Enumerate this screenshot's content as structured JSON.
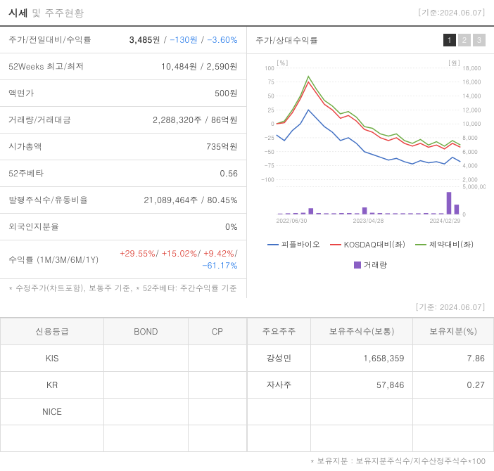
{
  "header": {
    "title_prefix": "시세",
    "title_suffix": "및 주주현황",
    "date": "[기준:2024.06.07]"
  },
  "info_rows": {
    "price_label": "주가/전일대비/수익률",
    "price_value": "3,485",
    "price_unit": "원",
    "price_change": "-130원",
    "price_pct": "-3.60%",
    "weeks_label": "52Weeks 최고/최저",
    "weeks_value": "10,484원 / 2,590원",
    "par_label": "액면가",
    "par_value": "500원",
    "volume_label": "거래량/거래대금",
    "volume_value": "2,288,320주 / 86억원",
    "mcap_label": "시가총액",
    "mcap_value": "735억원",
    "beta_label": "52주베타",
    "beta_value": "0.56",
    "shares_label": "발행주식수/유동비율",
    "shares_value": "21,089,464주 / 80.45%",
    "foreign_label": "외국인지분율",
    "foreign_value": "0%",
    "return_label": "수익률 (1M/3M/6M/1Y)",
    "return_1m": "+29.55%",
    "return_3m": "+15.02%",
    "return_6m": "+9.42%",
    "return_1y": "-61.17%"
  },
  "footnote_left": "* 수정주가(차트포함), 보통주 기준, * 52주베타: 주간수익률 기준",
  "footnote_bottom": "* 보유지분 : 보유지분주식수/지수산정주식수*100",
  "chart": {
    "title": "주가/상대수익률",
    "tabs": [
      "1",
      "2",
      "3"
    ],
    "active_tab": 0,
    "left_label": "[%]",
    "right_label": "[원]",
    "left_ticks": [
      "100",
      "75",
      "50",
      "25",
      "0",
      "-25",
      "-50",
      "-75",
      "-100"
    ],
    "right_ticks": [
      "18,000",
      "16,000",
      "14,000",
      "12,000",
      "10,000",
      "8,000",
      "6,000",
      "4,000",
      "2,000"
    ],
    "vol_ticks": [
      "5,000,000",
      "0"
    ],
    "x_labels": [
      "2022/06/30",
      "2023/04/28",
      "2024/02/29"
    ],
    "colors": {
      "line1": "#4472c4",
      "line2": "#e84545",
      "line3": "#70ad47",
      "bar": "#8a5fc4",
      "grid": "#d8d8d8",
      "axis_text": "#888"
    },
    "series": {
      "stock": [
        -20,
        -30,
        -12,
        0,
        25,
        10,
        -5,
        -15,
        -30,
        -25,
        -35,
        -50,
        -55,
        -60,
        -65,
        -62,
        -68,
        -72,
        -66,
        -70,
        -68,
        -72,
        -60,
        -68
      ],
      "kosdaq": [
        0,
        2,
        20,
        45,
        75,
        55,
        35,
        25,
        10,
        15,
        5,
        -10,
        -15,
        -25,
        -30,
        -25,
        -35,
        -40,
        -35,
        -42,
        -38,
        -45,
        -35,
        -42
      ],
      "pharma": [
        0,
        5,
        25,
        50,
        85,
        62,
        42,
        32,
        18,
        22,
        12,
        -5,
        -8,
        -18,
        -22,
        -18,
        -30,
        -35,
        -28,
        -38,
        -32,
        -40,
        -30,
        -38
      ],
      "volume": [
        0.03,
        0.04,
        0.05,
        0.06,
        0.22,
        0.05,
        0.04,
        0.04,
        0.05,
        0.05,
        0.04,
        0.25,
        0.06,
        0.05,
        0.04,
        0.04,
        0.04,
        0.04,
        0.04,
        0.05,
        0.04,
        0.04,
        0.8,
        0.35
      ]
    },
    "legend": {
      "l1": "피플바이오",
      "l2": "KOSDAQ대비(좌)",
      "l3": "제약대비(좌)",
      "l4": "거래량"
    }
  },
  "credit_table": {
    "headers": [
      "신용등급",
      "BOND",
      "CP"
    ],
    "rows": [
      [
        "KIS",
        "",
        ""
      ],
      [
        "KR",
        "",
        ""
      ],
      [
        "NICE",
        "",
        ""
      ]
    ]
  },
  "shareholder_table": {
    "headers": [
      "주요주주",
      "보유주식수(보통)",
      "보유지분(%)"
    ],
    "rows": [
      [
        "강성민",
        "1,658,359",
        "7.86"
      ],
      [
        "자사주",
        "57,846",
        "0.27"
      ]
    ]
  },
  "bottom_date": "[기준: 2024.06.07]"
}
